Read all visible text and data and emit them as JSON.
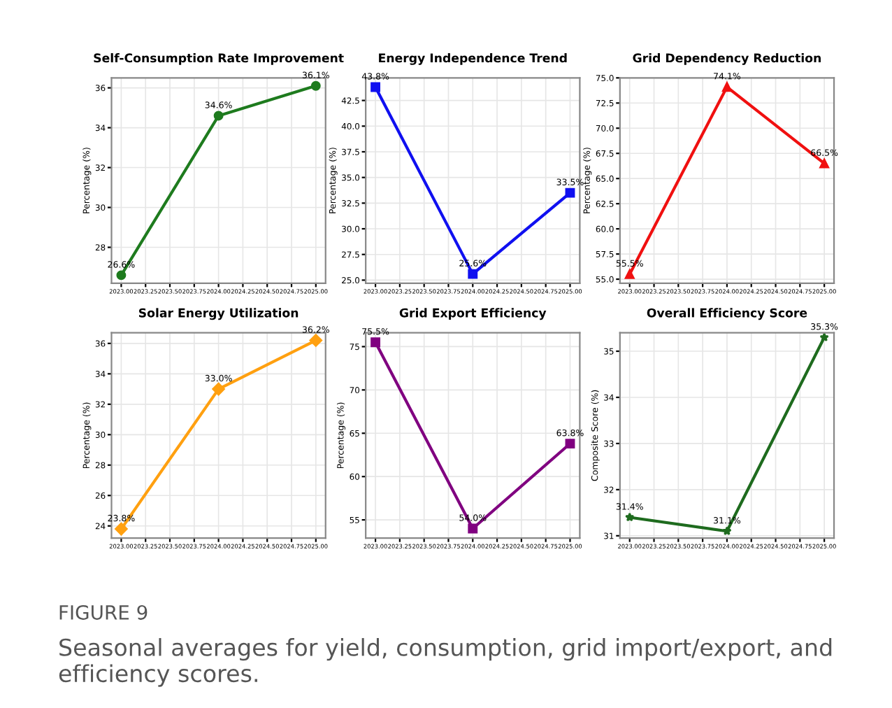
{
  "chart_data": [
    {
      "type": "line",
      "title": "Self-Consumption Rate Improvement",
      "ylabel": "Percentage (%)",
      "x": [
        2023,
        2024,
        2025
      ],
      "series": [
        {
          "color": "#1e7b1e",
          "values": [
            26.6,
            34.6,
            36.1
          ],
          "value_labels": [
            "26.6%",
            "34.6%",
            "36.1%"
          ]
        }
      ],
      "xlim": [
        2022.9,
        2025.1
      ],
      "xticks": [
        {
          "value": 2023,
          "label": "2023.00"
        },
        {
          "value": 2023.25,
          "label": "2023.25"
        },
        {
          "value": 2023.5,
          "label": "2023.50"
        },
        {
          "value": 2023.75,
          "label": "2023.75"
        },
        {
          "value": 2024,
          "label": "2024.00"
        },
        {
          "value": 2024.25,
          "label": "2024.25"
        },
        {
          "value": 2024.5,
          "label": "2024.50"
        },
        {
          "value": 2024.75,
          "label": "2024.75"
        },
        {
          "value": 2025,
          "label": "2025.00"
        }
      ],
      "ylim": [
        26.2,
        36.5
      ],
      "yticks": [
        28,
        30,
        32,
        34,
        36
      ],
      "grid": true,
      "marker": "circle",
      "line_style": "solid"
    },
    {
      "type": "line",
      "title": "Energy Independence Trend",
      "ylabel": "Percentage (%)",
      "x": [
        2023,
        2024,
        2025
      ],
      "series": [
        {
          "color": "#1010f0",
          "values": [
            43.8,
            25.6,
            33.5
          ],
          "value_labels": [
            "43.8%",
            "25.6%",
            "33.5%"
          ]
        }
      ],
      "xlim": [
        2022.9,
        2025.1
      ],
      "xticks": [
        {
          "value": 2023,
          "label": "2023.00"
        },
        {
          "value": 2023.25,
          "label": "2023.25"
        },
        {
          "value": 2023.5,
          "label": "2023.50"
        },
        {
          "value": 2023.75,
          "label": "2023.75"
        },
        {
          "value": 2024,
          "label": "2024.00"
        },
        {
          "value": 2024.25,
          "label": "2024.25"
        },
        {
          "value": 2024.5,
          "label": "2024.50"
        },
        {
          "value": 2024.75,
          "label": "2024.75"
        },
        {
          "value": 2025,
          "label": "2025.00"
        }
      ],
      "ylim": [
        24.7,
        44.7
      ],
      "yticks": [
        {
          "value": 25,
          "label": "25.0"
        },
        27.5,
        {
          "value": 30,
          "label": "30.0"
        },
        32.5,
        {
          "value": 35,
          "label": "35.0"
        },
        37.5,
        {
          "value": 40,
          "label": "40.0"
        },
        42.5
      ],
      "grid": true,
      "marker": "square",
      "line_style": "solid"
    },
    {
      "type": "line",
      "title": "Grid Dependency Reduction",
      "ylabel": "Percentage (%)",
      "x": [
        2023,
        2024,
        2025
      ],
      "series": [
        {
          "color": "#f01010",
          "values": [
            55.5,
            74.1,
            66.5
          ],
          "value_labels": [
            "55.5%",
            "74.1%",
            "66.5%"
          ]
        }
      ],
      "xlim": [
        2022.9,
        2025.1
      ],
      "xticks": [
        {
          "value": 2023,
          "label": "2023.00"
        },
        {
          "value": 2023.25,
          "label": "2023.25"
        },
        {
          "value": 2023.5,
          "label": "2023.50"
        },
        {
          "value": 2023.75,
          "label": "2023.75"
        },
        {
          "value": 2024,
          "label": "2024.00"
        },
        {
          "value": 2024.25,
          "label": "2024.25"
        },
        {
          "value": 2024.5,
          "label": "2024.50"
        },
        {
          "value": 2024.75,
          "label": "2024.75"
        },
        {
          "value": 2025,
          "label": "2025.00"
        }
      ],
      "ylim": [
        54.6,
        75.0
      ],
      "yticks": [
        {
          "value": 55,
          "label": "55.0"
        },
        57.5,
        {
          "value": 60,
          "label": "60.0"
        },
        62.5,
        {
          "value": 65,
          "label": "65.0"
        },
        67.5,
        {
          "value": 70,
          "label": "70.0"
        },
        72.5,
        {
          "value": 75,
          "label": "75.0"
        }
      ],
      "grid": true,
      "marker": "triangle",
      "line_style": "solid"
    },
    {
      "type": "line",
      "title": "Solar Energy Utilization",
      "ylabel": "Percentage (%)",
      "x": [
        2023,
        2024,
        2025
      ],
      "series": [
        {
          "color": "#ffa010",
          "values": [
            23.8,
            33.0,
            36.2
          ],
          "value_labels": [
            "23.8%",
            "33.0%",
            "36.2%"
          ]
        }
      ],
      "xlim": [
        2022.9,
        2025.1
      ],
      "xticks": [
        {
          "value": 2023,
          "label": "2023.00"
        },
        {
          "value": 2023.25,
          "label": "2023.25"
        },
        {
          "value": 2023.5,
          "label": "2023.50"
        },
        {
          "value": 2023.75,
          "label": "2023.75"
        },
        {
          "value": 2024,
          "label": "2024.00"
        },
        {
          "value": 2024.25,
          "label": "2024.25"
        },
        {
          "value": 2024.5,
          "label": "2024.50"
        },
        {
          "value": 2024.75,
          "label": "2024.75"
        },
        {
          "value": 2025,
          "label": "2025.00"
        }
      ],
      "ylim": [
        23.2,
        36.7
      ],
      "yticks": [
        24,
        26,
        28,
        30,
        32,
        34,
        36
      ],
      "grid": true,
      "marker": "diamond",
      "line_style": "solid"
    },
    {
      "type": "line",
      "title": "Grid Export Efficiency",
      "ylabel": "Percentage (%)",
      "x": [
        2023,
        2024,
        2025
      ],
      "series": [
        {
          "color": "#800080",
          "values": [
            75.5,
            54.0,
            63.8
          ],
          "value_labels": [
            "75.5%",
            "54.0%",
            "63.8%"
          ]
        }
      ],
      "xlim": [
        2022.9,
        2025.1
      ],
      "xticks": [
        {
          "value": 2023,
          "label": "2023.00"
        },
        {
          "value": 2023.25,
          "label": "2023.25"
        },
        {
          "value": 2023.5,
          "label": "2023.50"
        },
        {
          "value": 2023.75,
          "label": "2023.75"
        },
        {
          "value": 2024,
          "label": "2024.00"
        },
        {
          "value": 2024.25,
          "label": "2024.25"
        },
        {
          "value": 2024.5,
          "label": "2024.50"
        },
        {
          "value": 2024.75,
          "label": "2024.75"
        },
        {
          "value": 2025,
          "label": "2025.00"
        }
      ],
      "ylim": [
        52.9,
        76.6
      ],
      "yticks": [
        55,
        60,
        65,
        70,
        75
      ],
      "grid": true,
      "marker": "square",
      "line_style": "solid"
    },
    {
      "type": "line",
      "title": "Overall Efficiency Score",
      "ylabel": "Composite Score (%)",
      "x": [
        2023,
        2024,
        2025
      ],
      "series": [
        {
          "color": "#1e6b1e",
          "values": [
            31.4,
            31.1,
            35.3
          ],
          "value_labels": [
            "31.4%",
            "31.1%",
            "35.3%"
          ]
        }
      ],
      "xlim": [
        2022.9,
        2025.1
      ],
      "xticks": [
        {
          "value": 2023,
          "label": "2023.00"
        },
        {
          "value": 2023.25,
          "label": "2023.25"
        },
        {
          "value": 2023.5,
          "label": "2023.50"
        },
        {
          "value": 2023.75,
          "label": "2023.75"
        },
        {
          "value": 2024,
          "label": "2024.00"
        },
        {
          "value": 2024.25,
          "label": "2024.25"
        },
        {
          "value": 2024.5,
          "label": "2024.50"
        },
        {
          "value": 2024.75,
          "label": "2024.75"
        },
        {
          "value": 2025,
          "label": "2025.00"
        }
      ],
      "ylim": [
        30.95,
        35.4
      ],
      "yticks": [
        31,
        32,
        33,
        34,
        35
      ],
      "grid": true,
      "marker": "star",
      "line_style": "solid",
      "annotations": [
        "FIGURE 9",
        "Seasonal averages for yield, consumption, grid import/export, and efficiency scores."
      ]
    }
  ]
}
